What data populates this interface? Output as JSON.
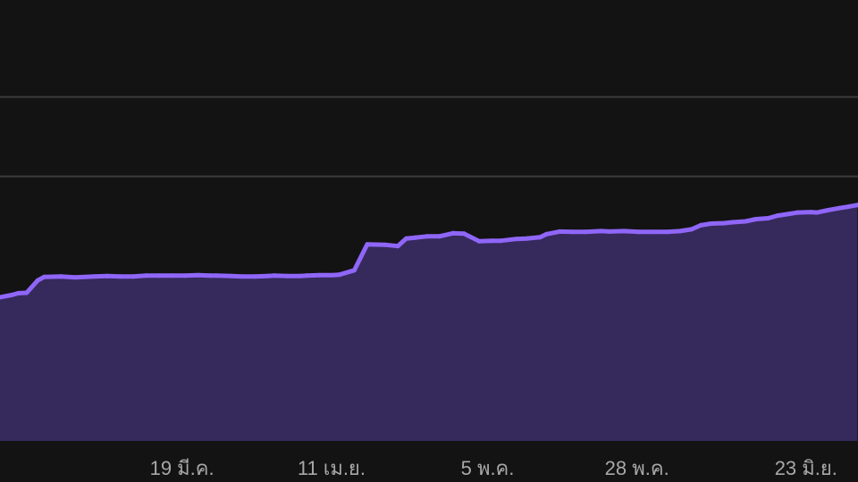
{
  "chart_data": {
    "type": "area",
    "title": "",
    "xlabel": "",
    "ylabel": "",
    "x_tick_labels": [
      "19 มี.ค.",
      "11 เม.ย.",
      "5 พ.ค.",
      "28 พ.ค.",
      "23 มิ.ย."
    ],
    "x_tick_days": [
      24,
      47,
      71,
      94,
      120
    ],
    "xlim": [
      -4,
      128
    ],
    "ylim": [
      0,
      100
    ],
    "gridlines_y": [
      60,
      78
    ],
    "y_axis_labels_visible": false,
    "grid": "horizontal",
    "legend": "none",
    "series": [
      {
        "x": [
          -4.3,
          -2.2,
          -1.2,
          0.1,
          1.8,
          2.8,
          5.4,
          7.5,
          10.5,
          12.5,
          14.5,
          16.5,
          18.5,
          20.5,
          22.5,
          24.5,
          26.5,
          28.3,
          29.3,
          31.6,
          33.2,
          35.2,
          37.2,
          38.2,
          40.2,
          42.2,
          43.2,
          45.2,
          47.2,
          48.2,
          50.5,
          52.5,
          55.2,
          57.2,
          58.5,
          59.9,
          61.7,
          63.6,
          65.7,
          67.4,
          69.7,
          71.7,
          73.1,
          75.4,
          77.0,
          79.1,
          80.1,
          82.1,
          84.1,
          86.1,
          88.5,
          89.8,
          92.0,
          94.3,
          96.6,
          98.7,
          100.6,
          102.4,
          103.8,
          105.4,
          107.4,
          108.7,
          110.7,
          112.3,
          114.2,
          115.6,
          117.4,
          118.7,
          120.8,
          121.7,
          123.3,
          125.1,
          126.4,
          127.9
        ],
        "y": [
          32.5,
          33.1,
          33.5,
          33.6,
          36.4,
          37.2,
          37.3,
          37.1,
          37.3,
          37.4,
          37.3,
          37.3,
          37.5,
          37.5,
          37.5,
          37.5,
          37.6,
          37.5,
          37.5,
          37.4,
          37.3,
          37.3,
          37.4,
          37.5,
          37.4,
          37.4,
          37.5,
          37.6,
          37.6,
          37.7,
          38.7,
          44.6,
          44.5,
          44.2,
          45.9,
          46.1,
          46.4,
          46.4,
          47.1,
          47.0,
          45.3,
          45.4,
          45.4,
          45.8,
          45.9,
          46.2,
          46.9,
          47.5,
          47.4,
          47.4,
          47.6,
          47.5,
          47.6,
          47.4,
          47.4,
          47.4,
          47.6,
          48.0,
          48.9,
          49.3,
          49.4,
          49.6,
          49.8,
          50.3,
          50.5,
          51.1,
          51.5,
          51.8,
          51.9,
          51.8,
          52.3,
          52.8,
          53.1,
          53.5
        ]
      }
    ],
    "line_color": "#8f66f8",
    "fill_color": "#36295c",
    "background_color": "#131313",
    "gridline_color": "#3b3b3b"
  }
}
